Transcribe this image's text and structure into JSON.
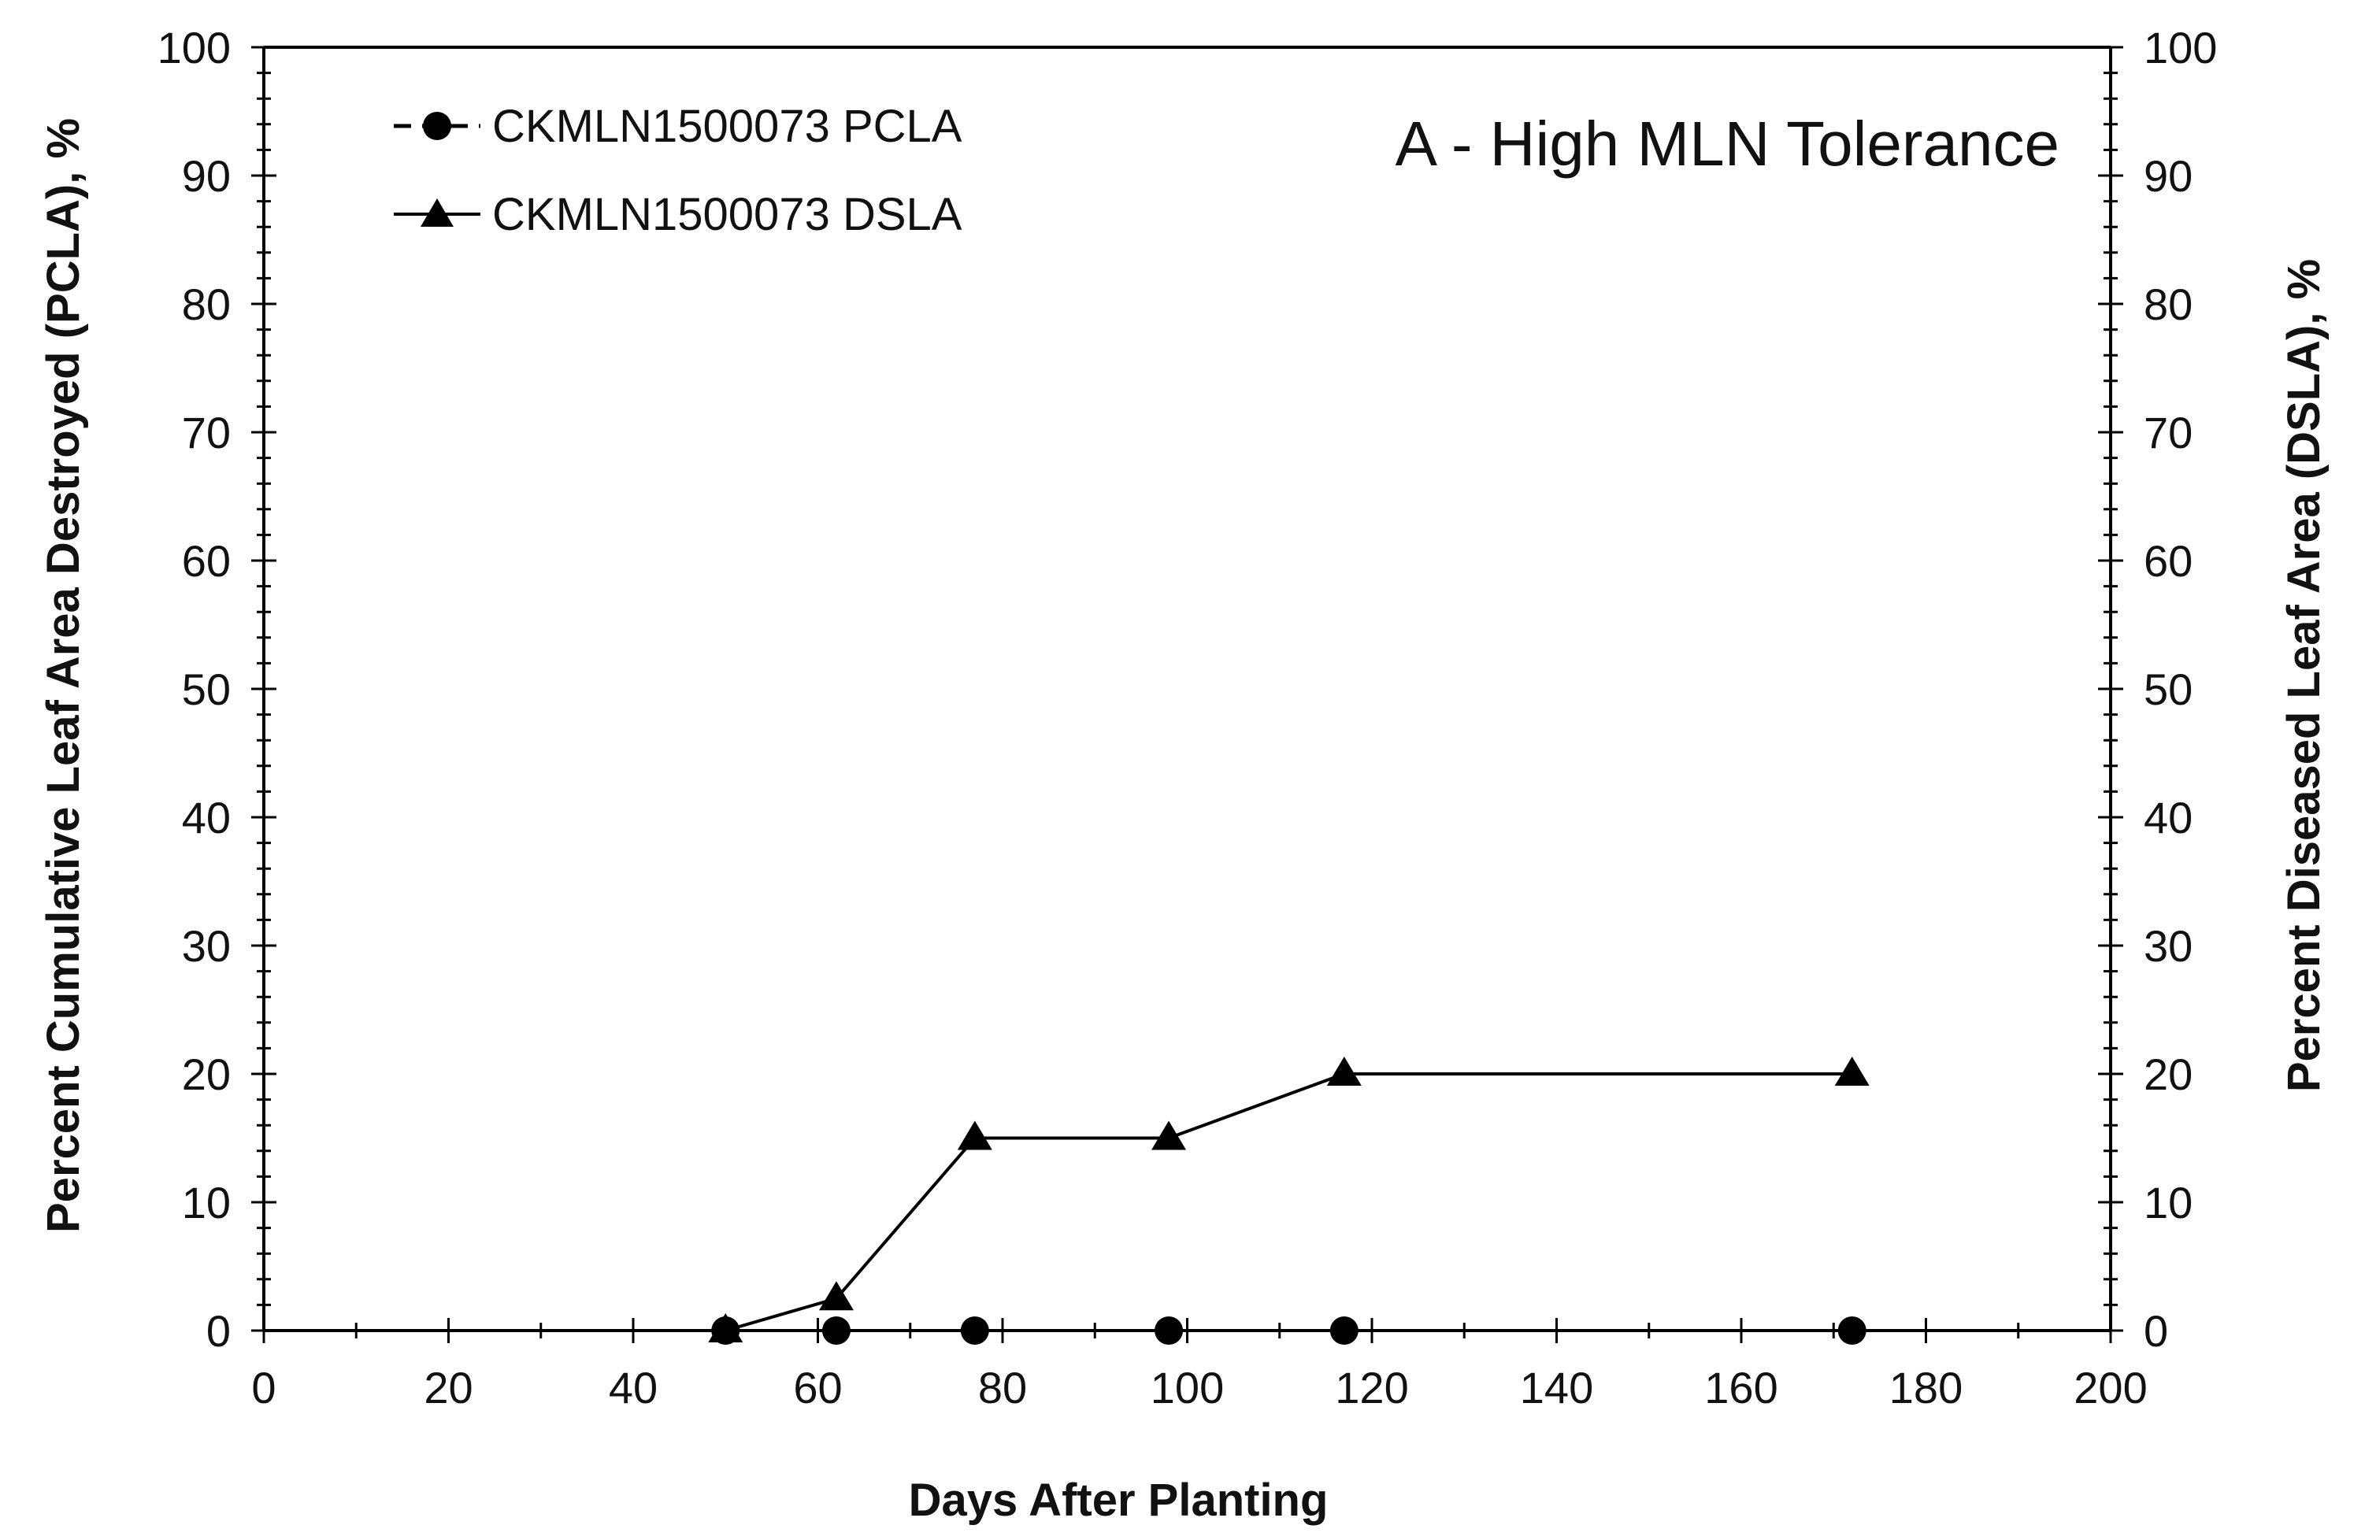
{
  "chart_data": {
    "type": "line",
    "title": "",
    "annotation": "A - High MLN Tolerance",
    "xlabel": "Days After Planting",
    "ylabel": "Percent Cumulative Leaf Area Destroyed (PCLA), %",
    "y2label": "Percent Diseased Leaf Area (DSLA), %",
    "xlim": [
      0,
      200
    ],
    "ylim": [
      0,
      100
    ],
    "y2lim": [
      0,
      100
    ],
    "x_ticks": [
      0,
      20,
      40,
      60,
      80,
      100,
      120,
      140,
      160,
      180,
      200
    ],
    "y_ticks": [
      0,
      10,
      20,
      30,
      40,
      50,
      60,
      70,
      80,
      90,
      100
    ],
    "grid": false,
    "legend_position": "top-left",
    "series": [
      {
        "name": "CKMLN1500073 PCLA",
        "marker": "circle",
        "line": "dashed",
        "axis": "left",
        "x": [
          50,
          62,
          77,
          98,
          117,
          172
        ],
        "values": [
          0,
          0,
          0,
          0,
          0,
          0
        ]
      },
      {
        "name": "CKMLN1500073 DSLA",
        "marker": "triangle",
        "line": "solid",
        "axis": "right",
        "x": [
          50,
          62,
          77,
          98,
          117,
          172
        ],
        "values": [
          0,
          2.5,
          15,
          15,
          20,
          20
        ]
      }
    ],
    "colors": {
      "ink": "#000000",
      "background": "#ffffff"
    }
  }
}
